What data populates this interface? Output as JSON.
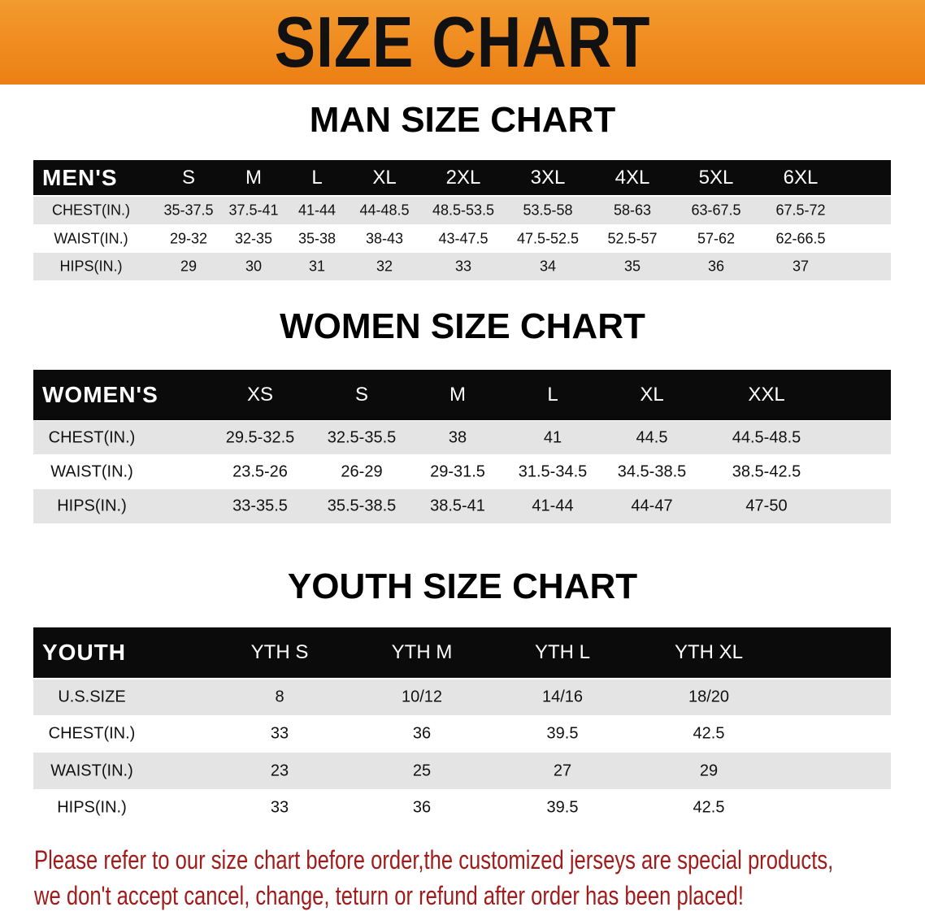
{
  "banner": {
    "title": "SIZE CHART",
    "color": "#ef8a1f"
  },
  "men": {
    "title": "MAN SIZE CHART",
    "header": [
      "MEN'S",
      "S",
      "M",
      "L",
      "XL",
      "2XL",
      "3XL",
      "4XL",
      "5XL",
      "6XL"
    ],
    "rows": [
      [
        "CHEST(IN.)",
        "35-37.5",
        "37.5-41",
        "41-44",
        "44-48.5",
        "48.5-53.5",
        "53.5-58",
        "58-63",
        "63-67.5",
        "67.5-72"
      ],
      [
        "WAIST(IN.)",
        "29-32",
        "32-35",
        "35-38",
        "38-43",
        "43-47.5",
        "47.5-52.5",
        "52.5-57",
        "57-62",
        "62-66.5"
      ],
      [
        "HIPS(IN.)",
        "29",
        "30",
        "31",
        "32",
        "33",
        "34",
        "35",
        "36",
        "37"
      ]
    ]
  },
  "women": {
    "title": "WOMEN SIZE CHART",
    "header": [
      "WOMEN'S",
      "XS",
      "S",
      "M",
      "L",
      "XL",
      "XXL"
    ],
    "rows": [
      [
        "CHEST(IN.)",
        "29.5-32.5",
        "32.5-35.5",
        "38",
        "41",
        "44.5",
        "44.5-48.5"
      ],
      [
        "WAIST(IN.)",
        "23.5-26",
        "26-29",
        "29-31.5",
        "31.5-34.5",
        "34.5-38.5",
        "38.5-42.5"
      ],
      [
        "HIPS(IN.)",
        "33-35.5",
        "35.5-38.5",
        "38.5-41",
        "41-44",
        "44-47",
        "47-50"
      ]
    ]
  },
  "youth": {
    "title": "YOUTH SIZE CHART",
    "header": [
      "YOUTH",
      "YTH S",
      "YTH M",
      "YTH L",
      "YTH XL"
    ],
    "rows": [
      [
        "U.S.SIZE",
        "8",
        "10/12",
        "14/16",
        "18/20"
      ],
      [
        "CHEST(IN.)",
        "33",
        "36",
        "39.5",
        "42.5"
      ],
      [
        "WAIST(IN.)",
        "23",
        "25",
        "27",
        "29"
      ],
      [
        "HIPS(IN.)",
        "33",
        "36",
        "39.5",
        "42.5"
      ]
    ]
  },
  "note": {
    "line1": "Please refer to our size chart before order,the customized jerseys are special products,",
    "line2": "we don't accept cancel, change, teturn or refund after order has been placed!",
    "color": "#a11b1b"
  }
}
